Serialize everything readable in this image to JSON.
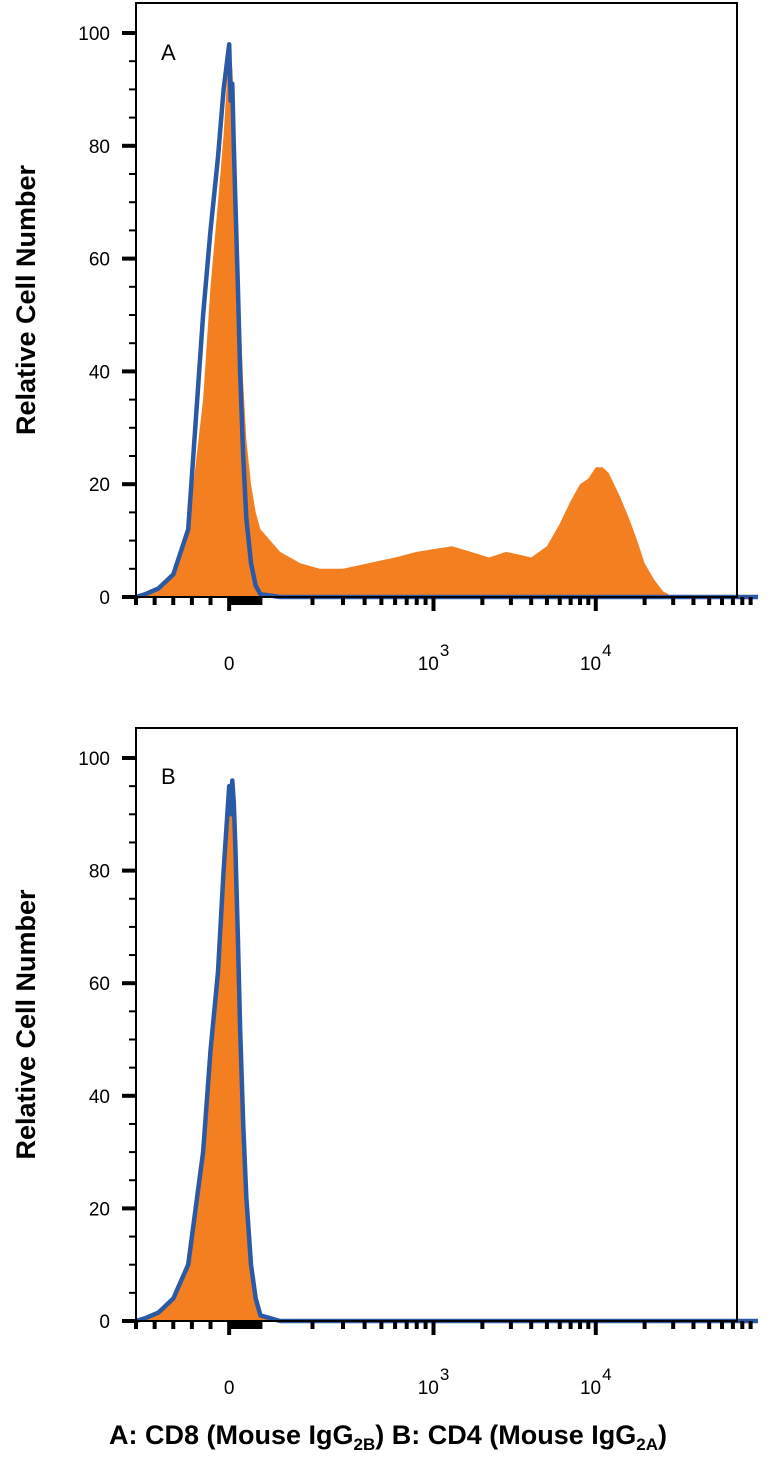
{
  "caption": {
    "a_prefix": "A: CD8 (Mouse IgG",
    "a_sub": "2B",
    "a_suffix": ")",
    "b_prefix": " B: CD4 (Mouse IgG",
    "b_sub": "2A",
    "b_suffix": ")"
  },
  "colors": {
    "filled": "#f47f20",
    "outline": "#2a5aa6",
    "frame": "#000000"
  },
  "chart_data": [
    {
      "type": "area",
      "panel_label": "A",
      "ylabel": "Relative Cell Number",
      "xlabel": "",
      "x_scale": "log (biexponential)",
      "x_tick_labels": [
        {
          "x": 0,
          "base": "0",
          "exp": ""
        },
        {
          "x": 1000,
          "base": "10",
          "exp": "3"
        },
        {
          "x": 10000,
          "base": "10",
          "exp": "4"
        }
      ],
      "xlim": [
        -50,
        100000
      ],
      "ylim": [
        0,
        100
      ],
      "y_ticks": [
        0,
        20,
        40,
        60,
        80,
        100
      ],
      "series": [
        {
          "style": "filled",
          "x": [
            -50,
            -45,
            -38,
            -30,
            -22,
            -14,
            -10,
            -6,
            -3,
            0,
            5,
            10,
            15,
            20,
            28,
            35,
            45,
            55,
            70,
            85,
            100,
            130,
            170,
            220,
            300,
            420,
            600,
            800,
            1000,
            1300,
            1700,
            2200,
            2800,
            3400,
            4000,
            5000,
            6000,
            7000,
            8000,
            9000,
            10000,
            11000,
            12000,
            14000,
            16000,
            18000,
            20000,
            23000,
            26000,
            30000,
            100000
          ],
          "y": [
            0,
            0.5,
            1.5,
            4,
            12,
            35,
            55,
            70,
            82,
            98,
            93,
            94,
            88,
            78,
            65,
            52,
            38,
            28,
            20,
            15,
            12,
            8,
            6,
            5,
            5,
            6,
            7,
            8,
            8.5,
            9,
            8,
            7,
            8,
            7.5,
            7,
            9,
            13,
            17,
            20,
            21,
            23,
            23,
            22,
            18,
            14,
            10,
            6,
            3,
            1,
            0,
            0
          ]
        },
        {
          "style": "outline",
          "x": [
            -50,
            -45,
            -38,
            -30,
            -22,
            -14,
            -10,
            -6,
            -3,
            0,
            5,
            10,
            15,
            20,
            28,
            35,
            45,
            55,
            70,
            85,
            100,
            130,
            170,
            220,
            300,
            100000
          ],
          "y": [
            0,
            0.5,
            1.5,
            4,
            12,
            50,
            65,
            78,
            90,
            98,
            88,
            91,
            80,
            70,
            55,
            40,
            25,
            14,
            6,
            2,
            0.5,
            0,
            0,
            0,
            0,
            0
          ]
        }
      ]
    },
    {
      "type": "area",
      "panel_label": "B",
      "ylabel": "Relative Cell Number",
      "xlabel": "",
      "x_scale": "log (biexponential)",
      "x_tick_labels": [
        {
          "x": 0,
          "base": "0",
          "exp": ""
        },
        {
          "x": 1000,
          "base": "10",
          "exp": "3"
        },
        {
          "x": 10000,
          "base": "10",
          "exp": "4"
        }
      ],
      "xlim": [
        -50,
        100000
      ],
      "ylim": [
        0,
        100
      ],
      "y_ticks": [
        0,
        20,
        40,
        60,
        80,
        100
      ],
      "series": [
        {
          "style": "filled",
          "x": [
            -50,
            -45,
            -38,
            -30,
            -22,
            -14,
            -10,
            -6,
            -3,
            0,
            5,
            10,
            15,
            20,
            28,
            35,
            45,
            55,
            70,
            85,
            100,
            130,
            170,
            220,
            100000
          ],
          "y": [
            0,
            0.5,
            1.5,
            4,
            10,
            30,
            48,
            62,
            80,
            95,
            90,
            96,
            92,
            84,
            68,
            52,
            35,
            22,
            10,
            4,
            1,
            0,
            0,
            0,
            0
          ]
        },
        {
          "style": "outline",
          "x": [
            -50,
            -45,
            -38,
            -30,
            -22,
            -14,
            -10,
            -6,
            -3,
            0,
            5,
            10,
            15,
            20,
            28,
            35,
            45,
            55,
            70,
            85,
            100,
            130,
            170,
            220,
            100000
          ],
          "y": [
            0,
            0.5,
            1.5,
            4,
            10,
            30,
            48,
            62,
            80,
            95,
            90,
            96,
            92,
            84,
            68,
            52,
            35,
            22,
            10,
            4,
            1,
            0,
            0,
            0,
            0
          ]
        }
      ]
    }
  ]
}
